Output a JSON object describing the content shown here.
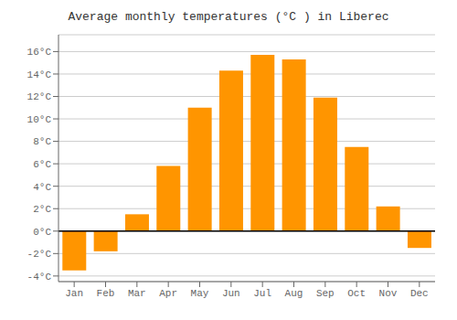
{
  "chart_data": {
    "type": "bar",
    "title": "Average monthly temperatures (°C ) in Liberec",
    "categories": [
      "Jan",
      "Feb",
      "Mar",
      "Apr",
      "May",
      "Jun",
      "Jul",
      "Aug",
      "Sep",
      "Oct",
      "Nov",
      "Dec"
    ],
    "values": [
      -3.5,
      -1.8,
      1.5,
      5.8,
      11.0,
      14.3,
      15.7,
      15.3,
      11.9,
      7.5,
      2.2,
      -1.5
    ],
    "color": "#FF9500",
    "ylim": [
      -4.5,
      17.5
    ],
    "yticks": [
      {
        "value": -4,
        "label": "-4°C"
      },
      {
        "value": -2,
        "label": "-2°C"
      },
      {
        "value": 0,
        "label": "0°C"
      },
      {
        "value": 2,
        "label": "2°C"
      },
      {
        "value": 4,
        "label": "4°C"
      },
      {
        "value": 6,
        "label": "6°C"
      },
      {
        "value": 8,
        "label": "8°C"
      },
      {
        "value": 10,
        "label": "10°C"
      },
      {
        "value": 12,
        "label": "12°C"
      },
      {
        "value": 14,
        "label": "14°C"
      },
      {
        "value": 16,
        "label": "16°C"
      }
    ],
    "grid": true
  }
}
